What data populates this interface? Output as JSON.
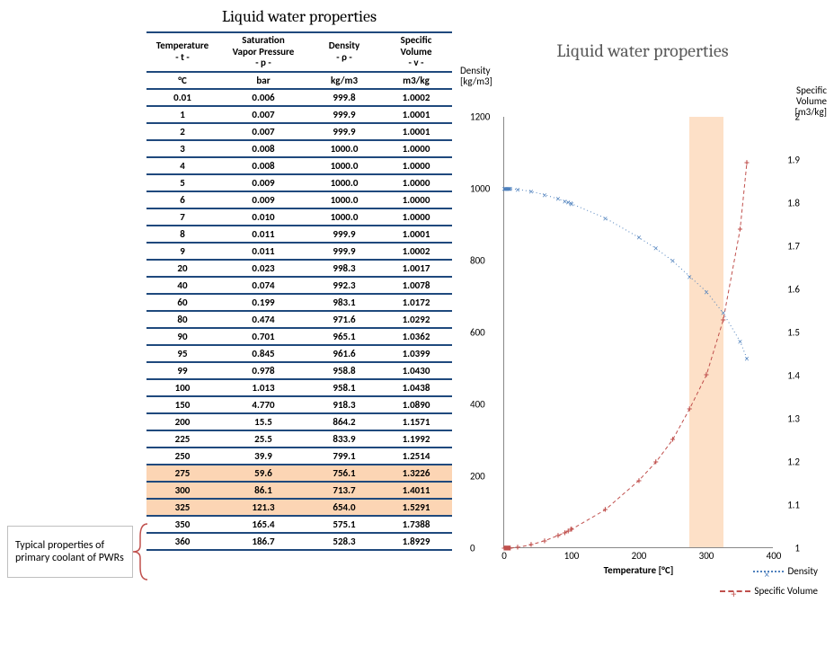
{
  "title": "Liquid water properties",
  "table": {
    "headers": [
      {
        "line1": "Temperature",
        "line2": "- t -"
      },
      {
        "line1": "Saturation Vapor Pressure",
        "line2": "- p -"
      },
      {
        "line1": "Density",
        "line2": "- ρ -"
      },
      {
        "line1": "Specific Volume",
        "line2": "- v -"
      }
    ],
    "units": [
      "°C",
      "bar",
      "kg/m3",
      "m3/kg"
    ],
    "rows": [
      {
        "t": "0.01",
        "p": "0.006",
        "d": "999.8",
        "v": "1.0002",
        "hl": false
      },
      {
        "t": "1",
        "p": "0.007",
        "d": "999.9",
        "v": "1.0001",
        "hl": false
      },
      {
        "t": "2",
        "p": "0.007",
        "d": "999.9",
        "v": "1.0001",
        "hl": false
      },
      {
        "t": "3",
        "p": "0.008",
        "d": "1000.0",
        "v": "1.0000",
        "hl": false
      },
      {
        "t": "4",
        "p": "0.008",
        "d": "1000.0",
        "v": "1.0000",
        "hl": false
      },
      {
        "t": "5",
        "p": "0.009",
        "d": "1000.0",
        "v": "1.0000",
        "hl": false
      },
      {
        "t": "6",
        "p": "0.009",
        "d": "1000.0",
        "v": "1.0000",
        "hl": false
      },
      {
        "t": "7",
        "p": "0.010",
        "d": "1000.0",
        "v": "1.0000",
        "hl": false
      },
      {
        "t": "8",
        "p": "0.011",
        "d": "999.9",
        "v": "1.0001",
        "hl": false
      },
      {
        "t": "9",
        "p": "0.011",
        "d": "999.9",
        "v": "1.0002",
        "hl": false
      },
      {
        "t": "20",
        "p": "0.023",
        "d": "998.3",
        "v": "1.0017",
        "hl": false
      },
      {
        "t": "40",
        "p": "0.074",
        "d": "992.3",
        "v": "1.0078",
        "hl": false
      },
      {
        "t": "60",
        "p": "0.199",
        "d": "983.1",
        "v": "1.0172",
        "hl": false
      },
      {
        "t": "80",
        "p": "0.474",
        "d": "971.6",
        "v": "1.0292",
        "hl": false
      },
      {
        "t": "90",
        "p": "0.701",
        "d": "965.1",
        "v": "1.0362",
        "hl": false
      },
      {
        "t": "95",
        "p": "0.845",
        "d": "961.6",
        "v": "1.0399",
        "hl": false
      },
      {
        "t": "99",
        "p": "0.978",
        "d": "958.8",
        "v": "1.0430",
        "hl": false
      },
      {
        "t": "100",
        "p": "1.013",
        "d": "958.1",
        "v": "1.0438",
        "hl": false
      },
      {
        "t": "150",
        "p": "4.770",
        "d": "918.3",
        "v": "1.0890",
        "hl": false
      },
      {
        "t": "200",
        "p": "15.5",
        "d": "864.2",
        "v": "1.1571",
        "hl": false
      },
      {
        "t": "225",
        "p": "25.5",
        "d": "833.9",
        "v": "1.1992",
        "hl": false
      },
      {
        "t": "250",
        "p": "39.9",
        "d": "799.1",
        "v": "1.2514",
        "hl": false
      },
      {
        "t": "275",
        "p": "59.6",
        "d": "756.1",
        "v": "1.3226",
        "hl": true
      },
      {
        "t": "300",
        "p": "86.1",
        "d": "713.7",
        "v": "1.4011",
        "hl": true
      },
      {
        "t": "325",
        "p": "121.3",
        "d": "654.0",
        "v": "1.5291",
        "hl": true
      },
      {
        "t": "350",
        "p": "165.4",
        "d": "575.1",
        "v": "1.7388",
        "hl": false
      },
      {
        "t": "360",
        "p": "186.7",
        "d": "528.3",
        "v": "1.8929",
        "hl": false
      }
    ]
  },
  "callout": "Typical properties of primary coolant of PWRs",
  "chart": {
    "title": "Liquid water properties",
    "y_left_label": "Density\n[kg/m3]",
    "y_right_label": "Specific\nVolume\n[m3/kg]",
    "x_label": "Temperature [°C]",
    "x_range": [
      0,
      400
    ],
    "y_left_range": [
      0,
      1200
    ],
    "y_right_range": [
      1,
      2
    ],
    "x_ticks": [
      0,
      100,
      200,
      300,
      400
    ],
    "y_left_ticks": [
      0,
      200,
      400,
      600,
      800,
      1000,
      1200
    ],
    "y_right_ticks": [
      1,
      1.1,
      1.2,
      1.3,
      1.4,
      1.5,
      1.6,
      1.7,
      1.8,
      1.9,
      2
    ],
    "band": {
      "from": 275,
      "to": 325,
      "color": "#fcd5b4"
    },
    "colors": {
      "density": "#4f81bd",
      "volume": "#c0504d",
      "axis": "#888888",
      "title": "#595959"
    },
    "series": {
      "density_label": "Density",
      "volume_label": "Specific Volume",
      "points": [
        {
          "t": 0.01,
          "d": 999.8,
          "v": 1.0002
        },
        {
          "t": 1,
          "d": 999.9,
          "v": 1.0001
        },
        {
          "t": 2,
          "d": 999.9,
          "v": 1.0001
        },
        {
          "t": 3,
          "d": 1000.0,
          "v": 1.0
        },
        {
          "t": 4,
          "d": 1000.0,
          "v": 1.0
        },
        {
          "t": 5,
          "d": 1000.0,
          "v": 1.0
        },
        {
          "t": 6,
          "d": 1000.0,
          "v": 1.0
        },
        {
          "t": 7,
          "d": 1000.0,
          "v": 1.0
        },
        {
          "t": 8,
          "d": 999.9,
          "v": 1.0001
        },
        {
          "t": 9,
          "d": 999.9,
          "v": 1.0002
        },
        {
          "t": 20,
          "d": 998.3,
          "v": 1.0017
        },
        {
          "t": 40,
          "d": 992.3,
          "v": 1.0078
        },
        {
          "t": 60,
          "d": 983.1,
          "v": 1.0172
        },
        {
          "t": 80,
          "d": 971.6,
          "v": 1.0292
        },
        {
          "t": 90,
          "d": 965.1,
          "v": 1.0362
        },
        {
          "t": 95,
          "d": 961.6,
          "v": 1.0399
        },
        {
          "t": 99,
          "d": 958.8,
          "v": 1.043
        },
        {
          "t": 100,
          "d": 958.1,
          "v": 1.0438
        },
        {
          "t": 150,
          "d": 918.3,
          "v": 1.089
        },
        {
          "t": 200,
          "d": 864.2,
          "v": 1.1571
        },
        {
          "t": 225,
          "d": 833.9,
          "v": 1.1992
        },
        {
          "t": 250,
          "d": 799.1,
          "v": 1.2514
        },
        {
          "t": 275,
          "d": 756.1,
          "v": 1.3226
        },
        {
          "t": 300,
          "d": 713.7,
          "v": 1.4011
        },
        {
          "t": 325,
          "d": 654.0,
          "v": 1.5291
        },
        {
          "t": 350,
          "d": 575.1,
          "v": 1.7388
        },
        {
          "t": 360,
          "d": 528.3,
          "v": 1.8929
        }
      ]
    }
  }
}
